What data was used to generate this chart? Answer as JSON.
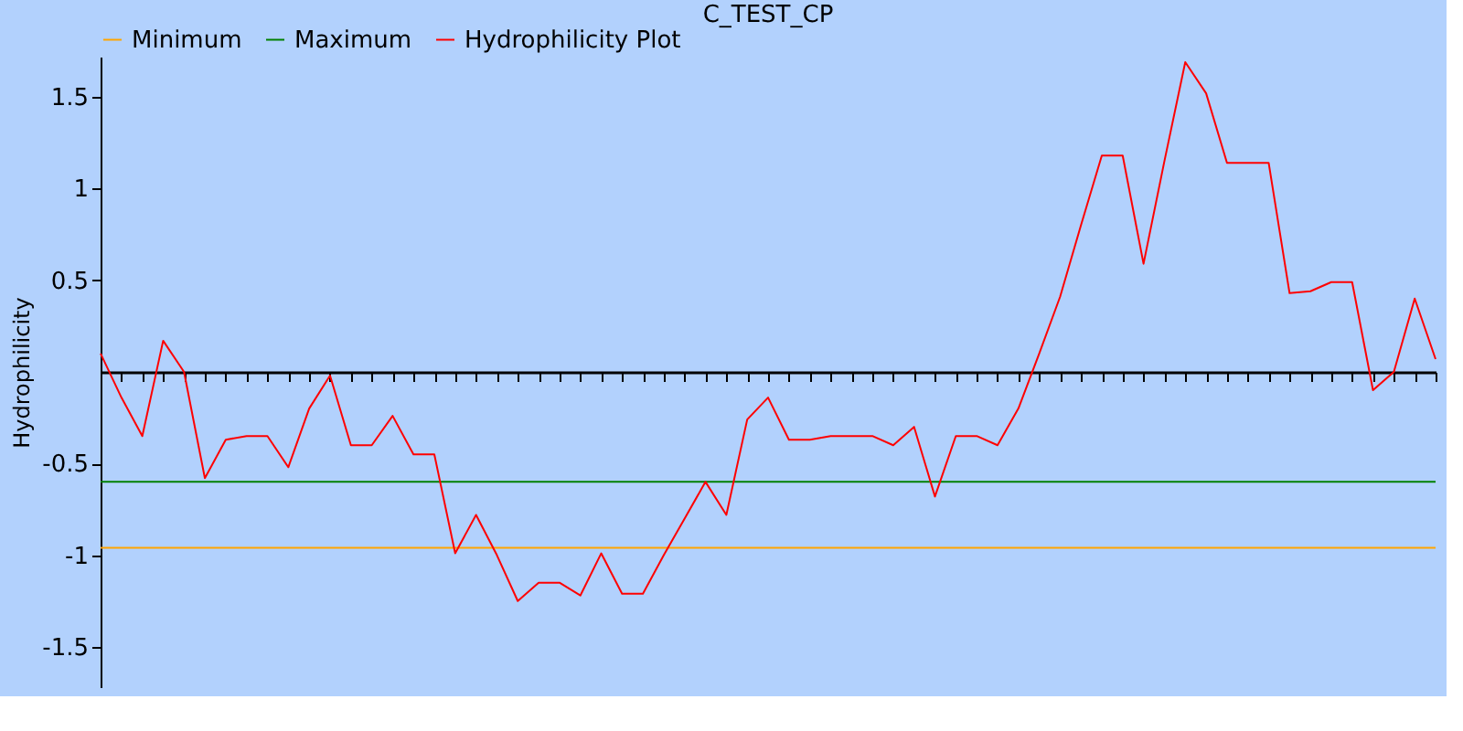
{
  "chart_data": {
    "type": "line",
    "title": "C_TEST_CP",
    "ylabel": "Hydrophilicity",
    "categories": [
      null,
      null,
      null,
      null,
      null,
      null,
      null,
      null,
      null,
      null,
      null,
      null,
      null,
      null,
      null,
      null,
      null,
      null,
      null,
      null,
      null,
      null,
      null,
      null,
      null,
      null,
      null,
      null,
      null,
      null,
      null,
      null,
      null,
      null,
      null,
      null,
      null,
      null,
      null,
      null,
      null,
      null,
      null,
      null,
      null,
      null,
      null,
      null,
      null,
      null,
      null,
      null,
      null,
      null,
      null,
      null,
      null,
      null,
      null,
      null,
      null,
      null,
      null,
      null,
      null
    ],
    "series": [
      {
        "name": "Minimum",
        "color": "#ffa500",
        "values": [
          -0.96,
          -0.96,
          -0.96,
          -0.96,
          -0.96,
          -0.96,
          -0.96,
          -0.96,
          -0.96,
          -0.96,
          -0.96,
          -0.96,
          -0.96,
          -0.96,
          -0.96,
          -0.96,
          -0.96,
          -0.96,
          -0.96,
          -0.96,
          -0.96,
          -0.96,
          -0.96,
          -0.96,
          -0.96,
          -0.96,
          -0.96,
          -0.96,
          -0.96,
          -0.96,
          -0.96,
          -0.96,
          -0.96,
          -0.96,
          -0.96,
          -0.96,
          -0.96,
          -0.96,
          -0.96,
          -0.96,
          -0.96,
          -0.96,
          -0.96,
          -0.96,
          -0.96,
          -0.96,
          -0.96,
          -0.96,
          -0.96,
          -0.96,
          -0.96,
          -0.96,
          -0.96,
          -0.96,
          -0.96,
          -0.96,
          -0.96,
          -0.96,
          -0.96,
          -0.96,
          -0.96,
          -0.96,
          -0.96,
          -0.96,
          -0.96
        ]
      },
      {
        "name": "Maximum",
        "color": "#007f00",
        "values": [
          -0.6,
          -0.6,
          -0.6,
          -0.6,
          -0.6,
          -0.6,
          -0.6,
          -0.6,
          -0.6,
          -0.6,
          -0.6,
          -0.6,
          -0.6,
          -0.6,
          -0.6,
          -0.6,
          -0.6,
          -0.6,
          -0.6,
          -0.6,
          -0.6,
          -0.6,
          -0.6,
          -0.6,
          -0.6,
          -0.6,
          -0.6,
          -0.6,
          -0.6,
          -0.6,
          -0.6,
          -0.6,
          -0.6,
          -0.6,
          -0.6,
          -0.6,
          -0.6,
          -0.6,
          -0.6,
          -0.6,
          -0.6,
          -0.6,
          -0.6,
          -0.6,
          -0.6,
          -0.6,
          -0.6,
          -0.6,
          -0.6,
          -0.6,
          -0.6,
          -0.6,
          -0.6,
          -0.6,
          -0.6,
          -0.6,
          -0.6,
          -0.6,
          -0.6,
          -0.6,
          -0.6,
          -0.6,
          -0.6,
          -0.6,
          -0.6
        ]
      },
      {
        "name": "Hydrophilicity Plot",
        "color": "#ff0000",
        "values": [
          0.1,
          -0.14,
          -0.35,
          0.17,
          0.0,
          -0.58,
          -0.37,
          -0.35,
          -0.35,
          -0.52,
          -0.2,
          -0.02,
          -0.4,
          -0.4,
          -0.24,
          -0.45,
          -0.45,
          -0.99,
          -0.78,
          -1.0,
          -1.25,
          -1.15,
          -1.15,
          -1.22,
          -0.99,
          -1.21,
          -1.21,
          -1.0,
          -0.8,
          -0.6,
          -0.78,
          -0.26,
          -0.14,
          -0.37,
          -0.37,
          -0.35,
          -0.35,
          -0.35,
          -0.4,
          -0.3,
          -0.68,
          -0.35,
          -0.35,
          -0.4,
          -0.2,
          0.1,
          0.41,
          0.8,
          1.18,
          1.18,
          0.59,
          1.15,
          1.69,
          1.52,
          1.14,
          1.14,
          1.14,
          0.43,
          0.44,
          0.49,
          0.49,
          -0.1,
          0.0,
          0.4,
          0.07
        ]
      }
    ],
    "ylim": [
      -1.72,
      1.72
    ],
    "yticks": [
      -1.5,
      -1,
      -0.5,
      0.5,
      1,
      1.5
    ],
    "tick_labels": "y",
    "grid": false,
    "legend": "top",
    "marker": "none",
    "line_style": "solid"
  }
}
